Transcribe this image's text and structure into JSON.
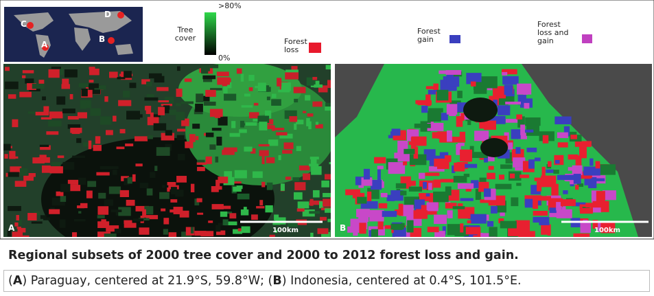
{
  "legend": {
    "map_labels": [
      "A",
      "B",
      "C",
      "D"
    ],
    "tree_cover": {
      "label": "Tree cover",
      "max": ">80%",
      "min": "0%"
    },
    "forest_loss": "Forest loss",
    "forest_gain": "Forest gain",
    "forest_loss_and_gain": "Forest loss and gain"
  },
  "panels": [
    {
      "label": "A",
      "scale": "100km"
    },
    {
      "label": "B",
      "scale": "100km"
    }
  ],
  "caption": {
    "title": "Regional subsets of 2000 tree cover and 2000 to 2012 forest loss and gain.",
    "body": [
      "(",
      "A",
      ") Paraguay, centered at 21.9°S, 59.8°W; (",
      "B",
      ") Indonesia, centered at 0.4°S, 101.5°E."
    ]
  }
}
